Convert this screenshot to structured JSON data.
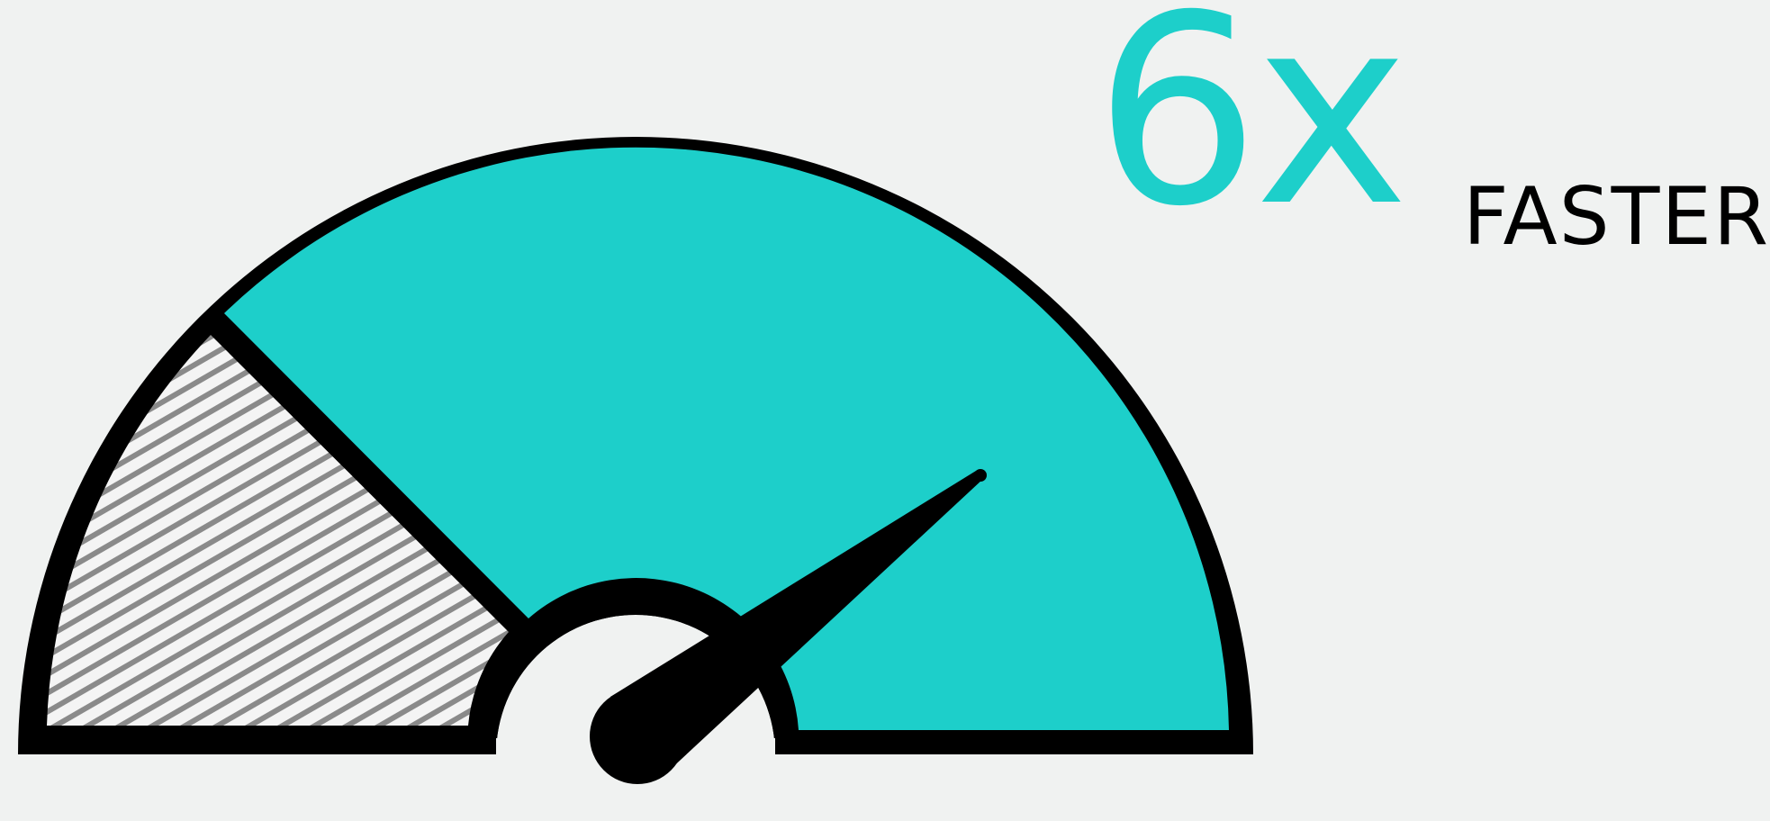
{
  "headline": {
    "value": "6x",
    "label": "FASTER"
  },
  "gauge": {
    "icons": {
      "dial": "speedometer-icon",
      "needle": "speedometer-needle-icon"
    },
    "colors": {
      "fill": "#1dcfca",
      "outline": "#000000",
      "hatch": "#8a8a8a",
      "background": "#f0f2f1"
    }
  }
}
